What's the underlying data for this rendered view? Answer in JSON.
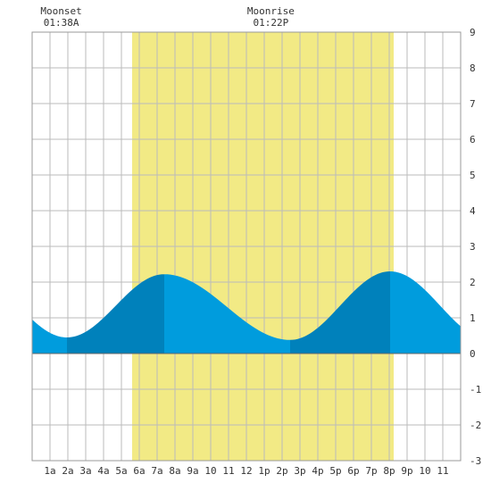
{
  "chart_data": {
    "type": "area",
    "title": "",
    "xlabel": "",
    "ylabel": "",
    "xlim": [
      0,
      24
    ],
    "ylim": [
      -3,
      9
    ],
    "x_ticks": [
      {
        "x": 1,
        "label": "1a"
      },
      {
        "x": 2,
        "label": "2a"
      },
      {
        "x": 3,
        "label": "3a"
      },
      {
        "x": 4,
        "label": "4a"
      },
      {
        "x": 5,
        "label": "5a"
      },
      {
        "x": 6,
        "label": "6a"
      },
      {
        "x": 7,
        "label": "7a"
      },
      {
        "x": 8,
        "label": "8a"
      },
      {
        "x": 9,
        "label": "9a"
      },
      {
        "x": 10,
        "label": "10"
      },
      {
        "x": 11,
        "label": "11"
      },
      {
        "x": 12,
        "label": "12"
      },
      {
        "x": 13,
        "label": "1p"
      },
      {
        "x": 14,
        "label": "2p"
      },
      {
        "x": 15,
        "label": "3p"
      },
      {
        "x": 16,
        "label": "4p"
      },
      {
        "x": 17,
        "label": "5p"
      },
      {
        "x": 18,
        "label": "6p"
      },
      {
        "x": 19,
        "label": "7p"
      },
      {
        "x": 20,
        "label": "8p"
      },
      {
        "x": 21,
        "label": "9p"
      },
      {
        "x": 22,
        "label": "10"
      },
      {
        "x": 23,
        "label": "11"
      }
    ],
    "y_ticks": [
      {
        "y": 9,
        "label": "9"
      },
      {
        "y": 8,
        "label": "8"
      },
      {
        "y": 7,
        "label": "7"
      },
      {
        "y": 6,
        "label": "6"
      },
      {
        "y": 5,
        "label": "5"
      },
      {
        "y": 4,
        "label": "4"
      },
      {
        "y": 3,
        "label": "3"
      },
      {
        "y": 2,
        "label": "2"
      },
      {
        "y": 1,
        "label": "1"
      },
      {
        "y": 0,
        "label": "0"
      },
      {
        "y": -1,
        "label": "-1"
      },
      {
        "y": -2,
        "label": "-2"
      },
      {
        "y": -3,
        "label": "-3"
      }
    ],
    "grid": true,
    "daylight": {
      "start": 5.6,
      "end": 20.25,
      "color": "#f2ea85"
    },
    "tide_extremes": [
      {
        "x": 1.95,
        "y": 0.45,
        "kind": "low"
      },
      {
        "x": 7.4,
        "y": 2.22,
        "kind": "high"
      },
      {
        "x": 14.45,
        "y": 0.38,
        "kind": "low"
      },
      {
        "x": 20.05,
        "y": 2.3,
        "kind": "high"
      }
    ],
    "series": [
      {
        "x": [
          0,
          1,
          1.95,
          3,
          4,
          5,
          6,
          7,
          7.4,
          8,
          9,
          10,
          11,
          12,
          13,
          14,
          14.45,
          15,
          16,
          17,
          18,
          19,
          20.05,
          21,
          22,
          23,
          24
        ],
        "values": [
          0.78,
          0.55,
          0.45,
          0.62,
          1.05,
          1.55,
          1.98,
          2.2,
          2.22,
          2.16,
          1.9,
          1.5,
          1.05,
          0.68,
          0.46,
          0.39,
          0.38,
          0.46,
          0.86,
          1.4,
          1.9,
          2.22,
          2.3,
          2.22,
          1.95,
          1.6,
          1.28
        ]
      }
    ],
    "colors": {
      "rising": "#0081bb",
      "falling": "#009cdd",
      "grid": "#bbbbbb",
      "frame": "#999999"
    },
    "annotations": [
      {
        "x": 1.63,
        "line1": "Moonset",
        "line2": "01:38A"
      },
      {
        "x": 13.37,
        "line1": "Moonrise",
        "line2": "01:22P"
      }
    ]
  }
}
